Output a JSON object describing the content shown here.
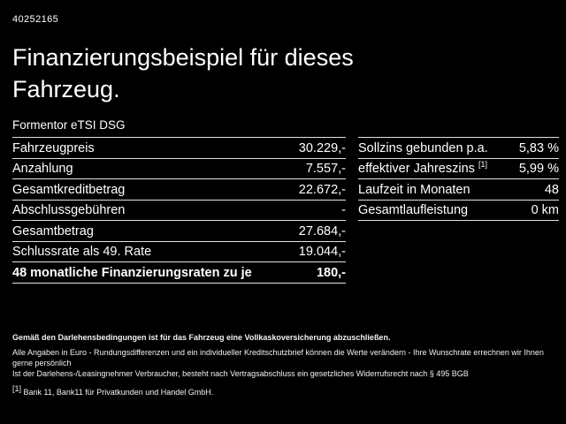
{
  "header": {
    "doc_number": "40252165",
    "title": "Finanzierungsbeispiel für dieses Fahrzeug.",
    "subtitle": "Formentor eTSI DSG"
  },
  "finance_table": {
    "rows": [
      {
        "label": "Fahrzeugpreis",
        "value": "30.229,-"
      },
      {
        "label": "Anzahlung",
        "value": "7.557,-"
      },
      {
        "label": "Gesamtkreditbetrag",
        "value": "22.672,-"
      },
      {
        "label": "Abschlussgebühren",
        "value": "-"
      },
      {
        "label": "Gesamtbetrag",
        "value": "27.684,-"
      },
      {
        "label": "Schlussrate als 49. Rate",
        "value": "19.044,-"
      },
      {
        "label": "48 monatliche Finanzierungsraten zu je",
        "value": "180,-"
      }
    ]
  },
  "conditions_table": {
    "rows": [
      {
        "label": "Sollzins gebunden p.a.",
        "value": "5,83 %"
      },
      {
        "label": "effektiver Jahreszins",
        "sup": "[1]",
        "value": "5,99 %"
      },
      {
        "label": "Laufzeit in Monaten",
        "value": "48"
      },
      {
        "label": "Gesamtlaufleistung",
        "value": "0 km"
      }
    ]
  },
  "footer": {
    "line1": "Gemäß den Darlehensbedingungen ist für das Fahrzeug eine Vollkaskoversicherung abzuschließen.",
    "line2": "Alle Angaben in Euro - Rundungsdifferenzen und ein individueller Kreditschutzbrief können die Werte verändern - Ihre Wunschrate errechnen wir Ihnen gerne persönlich",
    "line3": "Ist der Darlehens-/Leasingnehmer Verbraucher, besteht nach Vertragsabschluss ein gesetzliches Widerrufsrecht nach § 495 BGB",
    "note_ref": "[1]",
    "line4": " Bank 11, Bank11 für Privatkunden und Handel GmbH."
  },
  "colors": {
    "background": "#000000",
    "text": "#ffffff",
    "divider": "#e2e2e2"
  }
}
